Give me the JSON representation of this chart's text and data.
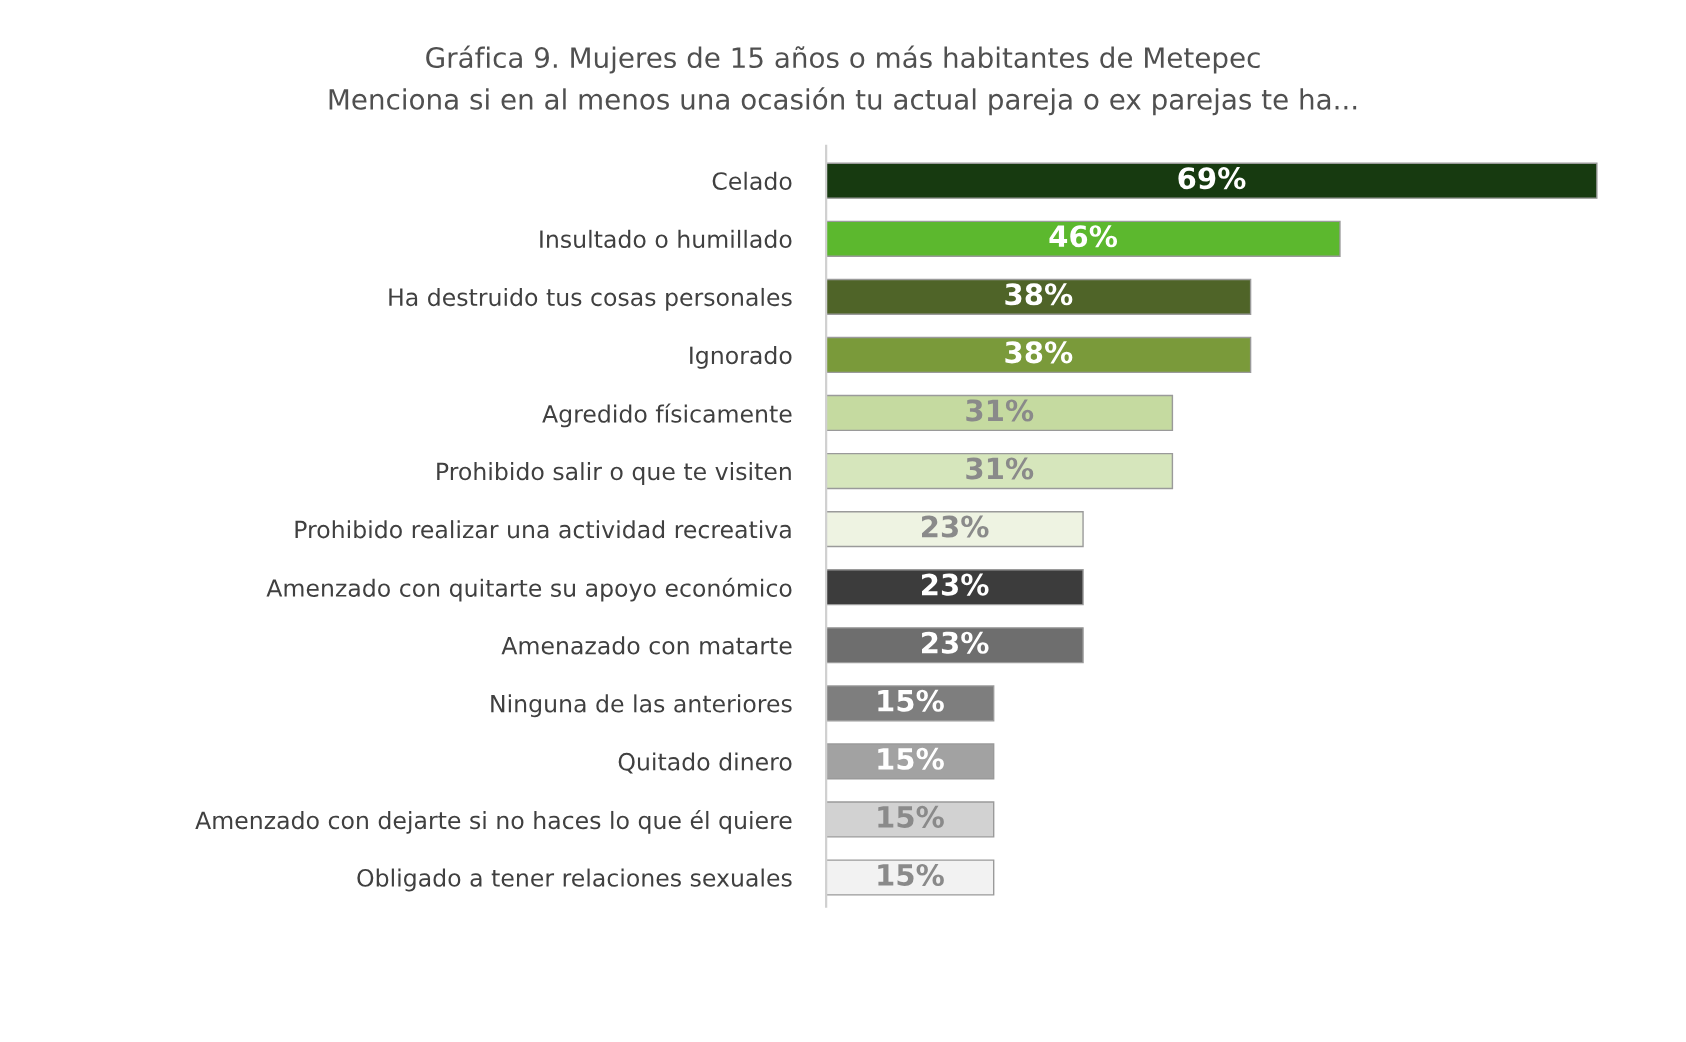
{
  "chart_data": {
    "type": "bar",
    "orientation": "horizontal",
    "title": "Gráfica 9. Mujeres de 15 años o más habitantes de Metepec",
    "subtitle": "Menciona si en al menos una ocasión tu actual pareja o ex parejas te ha...",
    "categories": [
      "Celado",
      "Insultado o humillado",
      "Ha destruido tus cosas personales",
      "Ignorado",
      "Agredido físicamente",
      "Prohibido salir o que te visiten",
      "Prohibido realizar una actividad recreativa",
      "Amenzado con quitarte su apoyo económico",
      "Amenazado con matarte",
      "Ninguna de las anteriores",
      "Quitado dinero",
      "Amenzado con dejarte si no haces lo que él quiere",
      "Obligado a tener relaciones sexuales"
    ],
    "values": [
      69,
      46,
      38,
      38,
      31,
      31,
      23,
      23,
      23,
      15,
      15,
      15,
      15
    ],
    "value_labels": [
      "69%",
      "46%",
      "38%",
      "38%",
      "31%",
      "31%",
      "23%",
      "23%",
      "23%",
      "15%",
      "15%",
      "15%",
      "15%"
    ],
    "colors": [
      "#173a10",
      "#5cb82e",
      "#4f6428",
      "#7a9a3a",
      "#c5daa0",
      "#d6e6bc",
      "#eef3e2",
      "#3c3c3c",
      "#6e6e6e",
      "#7e7e7e",
      "#a2a2a2",
      "#d2d2d2",
      "#f2f2f2"
    ]
  }
}
